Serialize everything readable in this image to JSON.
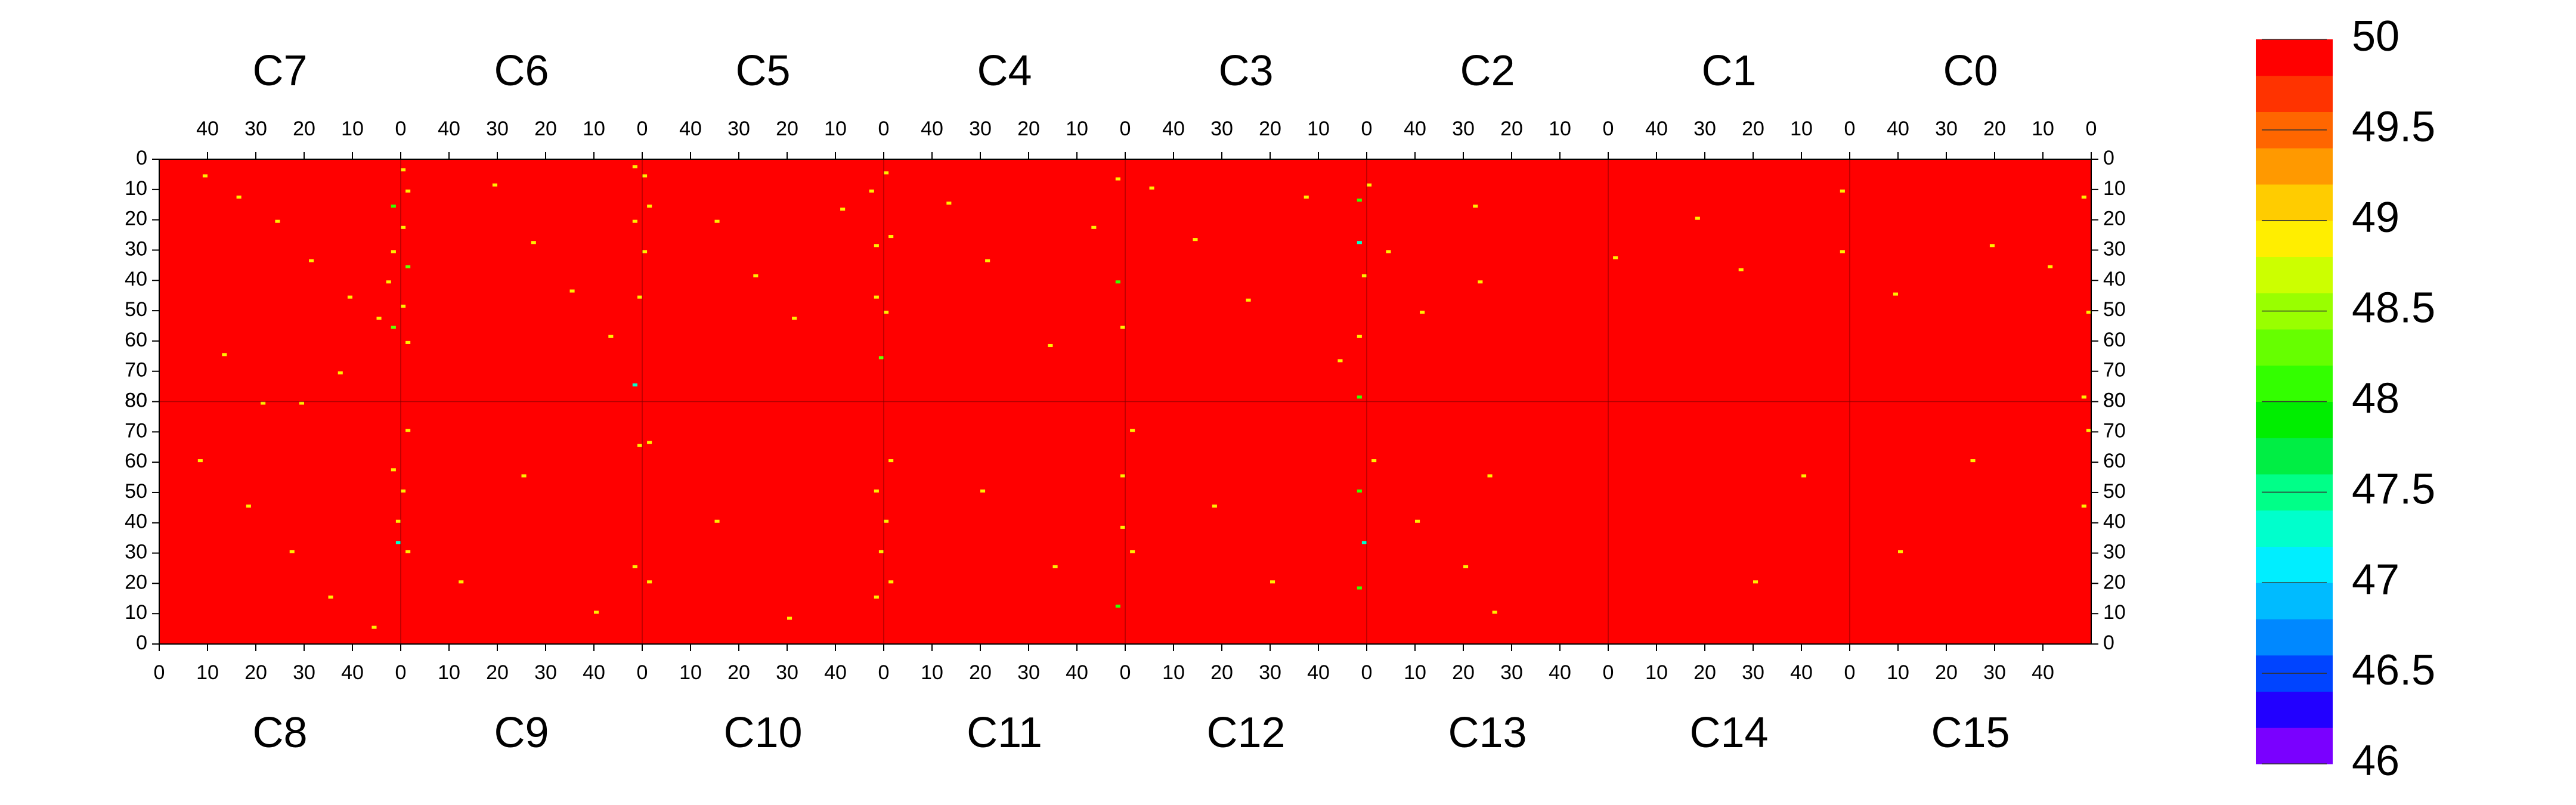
{
  "chart_data": {
    "type": "heatmap",
    "top_panels": [
      "C7",
      "C6",
      "C5",
      "C4",
      "C3",
      "C2",
      "C1",
      "C0"
    ],
    "bottom_panels": [
      "C8",
      "C9",
      "C10",
      "C11",
      "C12",
      "C13",
      "C14",
      "C15"
    ],
    "panel_xlim": [
      0,
      50
    ],
    "panel_xticks": [
      0,
      10,
      20,
      30,
      40
    ],
    "ylim": [
      0,
      80
    ],
    "yticks": [
      0,
      10,
      20,
      30,
      40,
      50,
      60,
      70,
      80
    ],
    "base_value": 50,
    "colorbar": {
      "lim": [
        46,
        50
      ],
      "ticks": [
        46,
        46.5,
        47,
        47.5,
        48,
        48.5,
        49,
        49.5,
        50
      ],
      "colors": [
        "#7a00ff",
        "#2200ff",
        "#0044ff",
        "#0088ff",
        "#00bbff",
        "#00eeff",
        "#00ffcc",
        "#00ff88",
        "#00ee44",
        "#00ee00",
        "#33ff00",
        "#66ff00",
        "#99ff00",
        "#ccff00",
        "#ffee00",
        "#ffcc00",
        "#ff9900",
        "#ff6600",
        "#ff3300",
        "#ff0000"
      ]
    },
    "cells": [
      [
        "C7",
        40,
        5,
        48.9
      ],
      [
        "C7",
        33,
        12,
        48.9
      ],
      [
        "C7",
        25,
        20,
        48.9
      ],
      [
        "C7",
        18,
        33,
        48.9
      ],
      [
        "C7",
        10,
        45,
        48.9
      ],
      [
        "C7",
        4,
        52,
        48.9
      ],
      [
        "C7",
        1,
        15,
        48.1
      ],
      [
        "C7",
        1,
        30,
        48.9
      ],
      [
        "C7",
        2,
        40,
        48.9
      ],
      [
        "C7",
        1,
        55,
        48.3
      ],
      [
        "C7",
        36,
        64,
        48.9
      ],
      [
        "C7",
        28,
        80,
        48.9
      ],
      [
        "C7",
        20,
        80,
        48.9
      ],
      [
        "C7",
        12,
        70,
        48.9
      ],
      [
        "C6",
        49,
        3,
        48.9
      ],
      [
        "C6",
        48,
        10,
        48.9
      ],
      [
        "C6",
        49,
        22,
        48.9
      ],
      [
        "C6",
        48,
        35,
        48.3
      ],
      [
        "C6",
        49,
        48,
        48.9
      ],
      [
        "C6",
        48,
        60,
        48.9
      ],
      [
        "C6",
        30,
        8,
        48.9
      ],
      [
        "C6",
        22,
        27,
        48.9
      ],
      [
        "C6",
        14,
        43,
        48.9
      ],
      [
        "C6",
        6,
        58,
        48.9
      ],
      [
        "C6",
        1,
        2,
        48.9
      ],
      [
        "C6",
        1,
        20,
        48.9
      ],
      [
        "C6",
        0,
        45,
        48.9
      ],
      [
        "C6",
        1,
        74,
        47.3
      ],
      [
        "C5",
        49,
        5,
        48.9
      ],
      [
        "C5",
        48,
        15,
        48.9
      ],
      [
        "C5",
        49,
        30,
        48.9
      ],
      [
        "C5",
        34,
        20,
        48.9
      ],
      [
        "C5",
        26,
        38,
        48.9
      ],
      [
        "C5",
        18,
        52,
        48.9
      ],
      [
        "C5",
        8,
        16,
        48.9
      ],
      [
        "C5",
        2,
        10,
        48.9
      ],
      [
        "C5",
        1,
        28,
        48.9
      ],
      [
        "C5",
        1,
        45,
        48.9
      ],
      [
        "C5",
        0,
        65,
        48.3
      ],
      [
        "C4",
        49,
        4,
        48.9
      ],
      [
        "C4",
        48,
        25,
        48.9
      ],
      [
        "C4",
        49,
        50,
        48.9
      ],
      [
        "C4",
        36,
        14,
        48.9
      ],
      [
        "C4",
        28,
        33,
        48.9
      ],
      [
        "C4",
        15,
        61,
        48.9
      ],
      [
        "C4",
        6,
        22,
        48.9
      ],
      [
        "C4",
        1,
        6,
        48.9
      ],
      [
        "C4",
        1,
        40,
        48.1
      ],
      [
        "C4",
        0,
        55,
        48.9
      ],
      [
        "C3",
        44,
        9,
        48.9
      ],
      [
        "C3",
        35,
        26,
        48.9
      ],
      [
        "C3",
        24,
        46,
        48.9
      ],
      [
        "C3",
        12,
        12,
        48.9
      ],
      [
        "C3",
        5,
        66,
        48.9
      ],
      [
        "C3",
        1,
        13,
        48.1
      ],
      [
        "C3",
        1,
        27,
        47.3
      ],
      [
        "C3",
        0,
        38,
        48.9
      ],
      [
        "C3",
        1,
        58,
        48.9
      ],
      [
        "C3",
        1,
        78,
        48.1
      ],
      [
        "C2",
        49,
        8,
        48.9
      ],
      [
        "C2",
        45,
        30,
        48.9
      ],
      [
        "C2",
        38,
        50,
        48.9
      ],
      [
        "C2",
        27,
        15,
        48.9
      ],
      [
        "C2",
        26,
        40,
        48.9
      ],
      [
        "C1",
        48,
        32,
        48.9
      ],
      [
        "C1",
        31,
        19,
        48.9
      ],
      [
        "C1",
        22,
        36,
        48.9
      ],
      [
        "C1",
        1,
        10,
        48.9
      ],
      [
        "C1",
        1,
        30,
        48.9
      ],
      [
        "C0",
        40,
        44,
        48.9
      ],
      [
        "C0",
        20,
        28,
        48.9
      ],
      [
        "C0",
        8,
        35,
        48.9
      ],
      [
        "C0",
        1,
        12,
        48.9
      ],
      [
        "C0",
        0,
        50,
        48.9
      ],
      [
        "C0",
        1,
        78,
        48.9
      ],
      [
        "C8",
        8,
        60,
        48.9
      ],
      [
        "C8",
        18,
        45,
        48.9
      ],
      [
        "C8",
        27,
        30,
        48.9
      ],
      [
        "C8",
        35,
        15,
        48.9
      ],
      [
        "C8",
        44,
        5,
        48.9
      ],
      [
        "C8",
        49,
        40,
        48.9
      ],
      [
        "C8",
        48,
        57,
        48.9
      ],
      [
        "C8",
        49,
        33,
        47.3
      ],
      [
        "C9",
        1,
        70,
        48.9
      ],
      [
        "C9",
        0,
        50,
        48.9
      ],
      [
        "C9",
        1,
        30,
        48.9
      ],
      [
        "C9",
        12,
        20,
        48.9
      ],
      [
        "C9",
        25,
        55,
        48.9
      ],
      [
        "C9",
        40,
        10,
        48.9
      ],
      [
        "C9",
        48,
        25,
        48.9
      ],
      [
        "C9",
        49,
        65,
        48.9
      ],
      [
        "C10",
        1,
        66,
        48.9
      ],
      [
        "C10",
        1,
        20,
        48.9
      ],
      [
        "C10",
        15,
        40,
        48.9
      ],
      [
        "C10",
        30,
        8,
        48.9
      ],
      [
        "C10",
        48,
        50,
        48.9
      ],
      [
        "C10",
        49,
        30,
        48.9
      ],
      [
        "C10",
        48,
        15,
        48.9
      ],
      [
        "C11",
        1,
        60,
        48.9
      ],
      [
        "C11",
        0,
        40,
        48.9
      ],
      [
        "C11",
        1,
        20,
        48.9
      ],
      [
        "C11",
        20,
        50,
        48.9
      ],
      [
        "C11",
        35,
        25,
        48.9
      ],
      [
        "C11",
        49,
        55,
        48.9
      ],
      [
        "C11",
        48,
        12,
        48.1
      ],
      [
        "C11",
        49,
        38,
        48.9
      ],
      [
        "C12",
        1,
        70,
        48.9
      ],
      [
        "C12",
        1,
        30,
        48.9
      ],
      [
        "C12",
        18,
        45,
        48.9
      ],
      [
        "C12",
        30,
        20,
        48.9
      ],
      [
        "C12",
        48,
        50,
        48.1
      ],
      [
        "C12",
        49,
        33,
        47.3
      ],
      [
        "C12",
        48,
        18,
        48.1
      ],
      [
        "C13",
        1,
        60,
        48.9
      ],
      [
        "C13",
        10,
        40,
        48.9
      ],
      [
        "C13",
        20,
        25,
        48.9
      ],
      [
        "C13",
        25,
        55,
        48.9
      ],
      [
        "C13",
        26,
        10,
        48.9
      ],
      [
        "C14",
        30,
        20,
        48.9
      ],
      [
        "C14",
        40,
        55,
        48.9
      ],
      [
        "C15",
        10,
        30,
        48.9
      ],
      [
        "C15",
        25,
        60,
        48.9
      ],
      [
        "C15",
        48,
        45,
        48.9
      ],
      [
        "C15",
        49,
        70,
        48.9
      ]
    ]
  }
}
